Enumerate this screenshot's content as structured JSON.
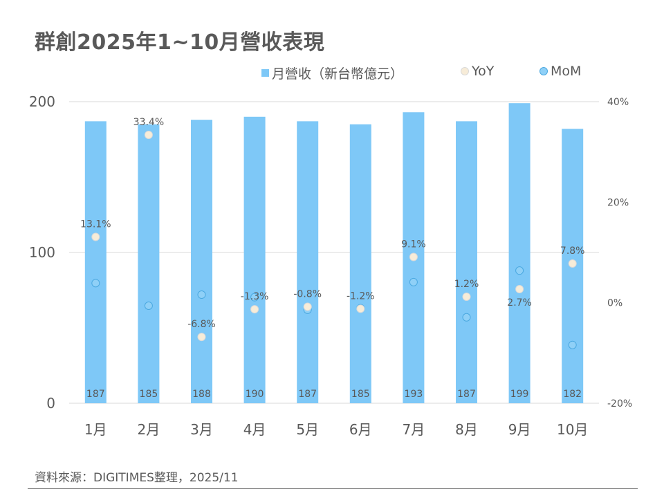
{
  "title": "群創2025年1~10月營收表現",
  "legend": {
    "revenue_label": "月營收（新台幣億元）",
    "yoy_label": "YoY",
    "mom_label": "MoM"
  },
  "source": "資料來源：DIGITIMES整理，2025/11",
  "colors": {
    "bar": "#7ec8f7",
    "yoy_fill": "#f7ecd8",
    "yoy_stroke": "#d9d9d9",
    "mom_fill": "#8fd0f7",
    "mom_stroke": "#4aa8e0",
    "grid": "#d9d9d9",
    "text": "#595959"
  },
  "chart_data": {
    "type": "bar",
    "title": "群創2025年1~10月營收表現",
    "categories": [
      "1月",
      "2月",
      "3月",
      "4月",
      "5月",
      "6月",
      "7月",
      "8月",
      "9月",
      "10月"
    ],
    "primary_axis": {
      "ylim": [
        0,
        200
      ],
      "ticks": [
        "0",
        "100",
        "200"
      ]
    },
    "secondary_axis": {
      "ylim": [
        -20,
        40
      ],
      "ticks": [
        "-20%",
        "0%",
        "20%",
        "40%"
      ]
    },
    "series": [
      {
        "name": "月營收（新台幣億元）",
        "kind": "bar",
        "axis": "primary",
        "values": [
          187,
          185,
          188,
          190,
          187,
          185,
          193,
          187,
          199,
          182
        ],
        "labels": [
          "187",
          "185",
          "188",
          "190",
          "187",
          "185",
          "193",
          "187",
          "199",
          "182"
        ]
      },
      {
        "name": "YoY",
        "kind": "scatter",
        "axis": "secondary",
        "values": [
          13.1,
          33.4,
          -6.8,
          -1.3,
          -0.8,
          -1.2,
          9.1,
          1.2,
          2.7,
          7.8
        ],
        "labels": [
          "13.1%",
          "33.4%",
          "-6.8%",
          "-1.3%",
          "-0.8%",
          "-1.2%",
          "9.1%",
          "1.2%",
          "2.7%",
          "7.8%"
        ]
      },
      {
        "name": "MoM",
        "kind": "scatter",
        "axis": "secondary",
        "values": [
          3.9,
          -0.6,
          1.6,
          1.1,
          -1.4,
          -1.1,
          4.1,
          -2.9,
          6.4,
          -8.4
        ]
      }
    ]
  }
}
